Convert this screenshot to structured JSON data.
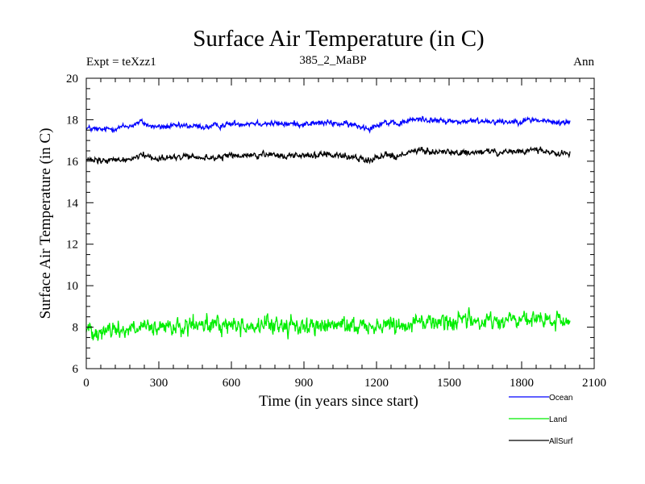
{
  "chart_data": {
    "type": "line",
    "title": "Surface Air Temperature (in C)",
    "subtitle_left": "Expt = teXzz1",
    "subtitle_center": "385_2_MaBP",
    "subtitle_right": "Ann",
    "xlabel": "Time (in years since start)",
    "ylabel": "Surface Air Temperature (in C)",
    "xlim": [
      0,
      2100
    ],
    "ylim": [
      6,
      20
    ],
    "xticks": [
      0,
      300,
      600,
      900,
      1200,
      1500,
      1800,
      2100
    ],
    "yticks": [
      6,
      8,
      10,
      12,
      14,
      16,
      18,
      20
    ],
    "x_start": 0,
    "x_end": 2000,
    "series": [
      {
        "name": "Ocean",
        "color": "#0000ff",
        "noise": 0.09,
        "anchors": [
          [
            0,
            17.6
          ],
          [
            60,
            17.5
          ],
          [
            120,
            17.6
          ],
          [
            180,
            17.7
          ],
          [
            230,
            17.9
          ],
          [
            260,
            17.7
          ],
          [
            300,
            17.65
          ],
          [
            400,
            17.7
          ],
          [
            500,
            17.65
          ],
          [
            600,
            17.8
          ],
          [
            700,
            17.85
          ],
          [
            800,
            17.8
          ],
          [
            900,
            17.8
          ],
          [
            1000,
            17.85
          ],
          [
            1100,
            17.75
          ],
          [
            1170,
            17.6
          ],
          [
            1230,
            17.9
          ],
          [
            1280,
            17.75
          ],
          [
            1330,
            17.95
          ],
          [
            1380,
            18.05
          ],
          [
            1450,
            17.95
          ],
          [
            1550,
            17.9
          ],
          [
            1650,
            17.95
          ],
          [
            1750,
            17.9
          ],
          [
            1850,
            18.0
          ],
          [
            1950,
            17.85
          ],
          [
            2000,
            17.9
          ]
        ]
      },
      {
        "name": "Land",
        "color": "#00ee00",
        "noise": 0.28,
        "anchors": [
          [
            0,
            7.9
          ],
          [
            100,
            7.85
          ],
          [
            200,
            7.95
          ],
          [
            300,
            7.9
          ],
          [
            400,
            8.0
          ],
          [
            500,
            8.1
          ],
          [
            600,
            8.1
          ],
          [
            700,
            8.05
          ],
          [
            800,
            8.1
          ],
          [
            900,
            8.05
          ],
          [
            1000,
            8.05
          ],
          [
            1100,
            8.1
          ],
          [
            1200,
            8.05
          ],
          [
            1300,
            8.2
          ],
          [
            1400,
            8.25
          ],
          [
            1500,
            8.3
          ],
          [
            1600,
            8.3
          ],
          [
            1700,
            8.3
          ],
          [
            1800,
            8.35
          ],
          [
            1900,
            8.3
          ],
          [
            2000,
            8.25
          ]
        ]
      },
      {
        "name": "AllSurf",
        "color": "#000000",
        "noise": 0.1,
        "anchors": [
          [
            0,
            16.05
          ],
          [
            60,
            16.0
          ],
          [
            120,
            16.05
          ],
          [
            180,
            16.1
          ],
          [
            230,
            16.35
          ],
          [
            260,
            16.2
          ],
          [
            300,
            16.15
          ],
          [
            400,
            16.2
          ],
          [
            500,
            16.15
          ],
          [
            600,
            16.25
          ],
          [
            700,
            16.3
          ],
          [
            800,
            16.25
          ],
          [
            900,
            16.3
          ],
          [
            1000,
            16.3
          ],
          [
            1100,
            16.2
          ],
          [
            1170,
            16.05
          ],
          [
            1230,
            16.35
          ],
          [
            1280,
            16.2
          ],
          [
            1330,
            16.4
          ],
          [
            1380,
            16.5
          ],
          [
            1450,
            16.45
          ],
          [
            1550,
            16.4
          ],
          [
            1650,
            16.45
          ],
          [
            1750,
            16.4
          ],
          [
            1850,
            16.55
          ],
          [
            1950,
            16.4
          ],
          [
            2000,
            16.4
          ]
        ]
      }
    ]
  }
}
